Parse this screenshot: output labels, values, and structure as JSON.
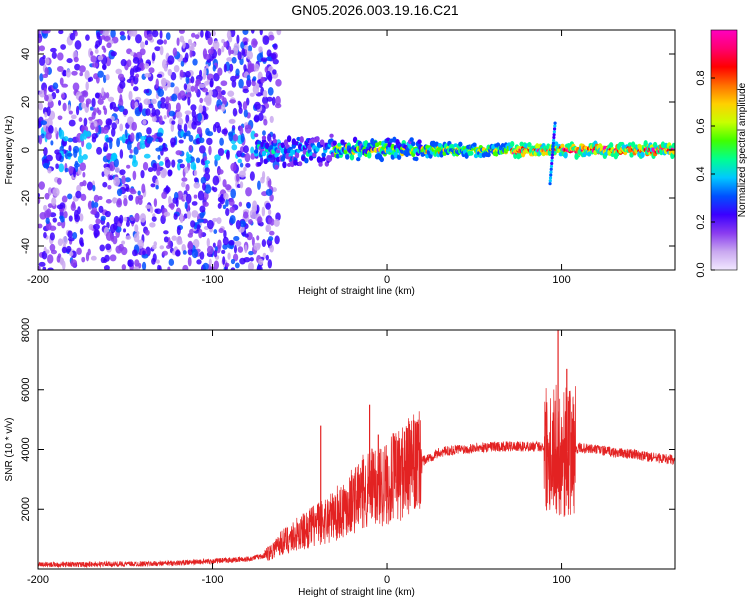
{
  "title": "GN05.2026.003.19.16.C21",
  "chart_data": [
    {
      "type": "heatmap",
      "xlabel": "Height of straight line (km)",
      "ylabel": "Frequency (Hz)",
      "xlim": [
        -200,
        165
      ],
      "ylim": [
        -50,
        50
      ],
      "x_ticks": [
        "-200",
        "-100",
        "0",
        "100"
      ],
      "y_ticks": [
        "40",
        "20",
        "0",
        "-20",
        "-40"
      ],
      "colorbar": {
        "label": "Normalized spectral amplitude",
        "range": [
          0.0,
          1.0
        ],
        "ticks": [
          "0.0",
          "0.2",
          "0.4",
          "0.6",
          "0.8"
        ],
        "colors": [
          "#f2e8ff",
          "#c9a8f0",
          "#8a3cf0",
          "#3b00ff",
          "#0050ff",
          "#00c8ff",
          "#00ff90",
          "#40ff00",
          "#c8ff00",
          "#ffd000",
          "#ff7000",
          "#ff0000",
          "#ff0070",
          "#ff00c0"
        ]
      },
      "features": {
        "noise_region_x": [
          -200,
          -70
        ],
        "ridge_frequency": 0,
        "spike_x": 95
      }
    },
    {
      "type": "line",
      "xlabel": "Height of straight line (km)",
      "ylabel": "SNR (10 * v/v)",
      "xlim": [
        -200,
        165
      ],
      "ylim": [
        0,
        8000
      ],
      "x_ticks": [
        "-200",
        "-100",
        "0",
        "100"
      ],
      "y_ticks": [
        "8000",
        "6000",
        "4000",
        "2000"
      ],
      "line_color": "#e32222",
      "series": [
        {
          "x": [
            -200,
            -180,
            -160,
            -140,
            -120,
            -100,
            -80,
            -70,
            -60,
            -50,
            -40,
            -30,
            -20,
            -10,
            0,
            10,
            20,
            30,
            40,
            50,
            60,
            70,
            80,
            90,
            95,
            100,
            105,
            110,
            120,
            130,
            140,
            150,
            165
          ],
          "values": [
            150,
            150,
            160,
            170,
            200,
            260,
            330,
            450,
            900,
            1200,
            1500,
            1800,
            2300,
            2700,
            2900,
            3300,
            3600,
            3900,
            4000,
            4050,
            4100,
            4100,
            4100,
            4100,
            4050,
            3900,
            3950,
            4050,
            4000,
            3900,
            3850,
            3750,
            3650
          ]
        }
      ],
      "spikes": [
        {
          "x": -38,
          "value": 4800
        },
        {
          "x": -10,
          "value": 5500
        },
        {
          "x": -5,
          "value": 4500
        },
        {
          "x": 10,
          "value": 4600
        },
        {
          "x": 98,
          "value": 8100
        },
        {
          "x": 103,
          "value": 6700
        }
      ]
    }
  ]
}
